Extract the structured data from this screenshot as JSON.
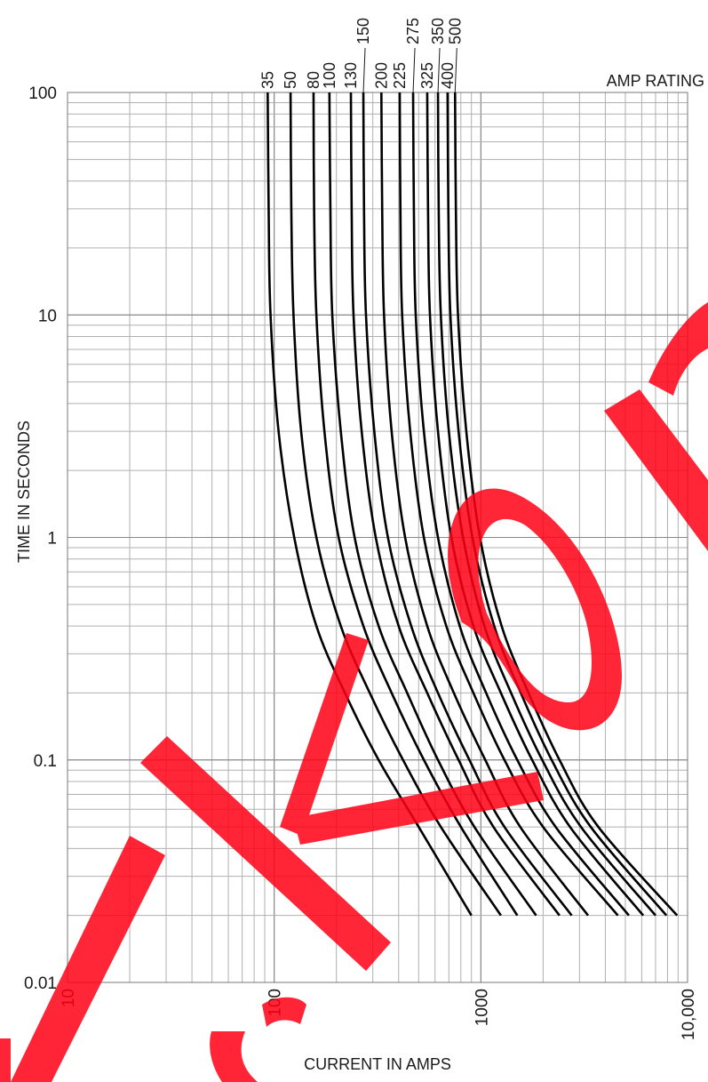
{
  "chart_data": {
    "type": "line",
    "title": "",
    "xlabel": "CURRENT IN AMPS",
    "ylabel": "TIME IN SECONDS",
    "legend_title": "AMP RATING",
    "x_scale": "log",
    "y_scale": "log",
    "xlim": [
      10,
      10000
    ],
    "ylim": [
      0.01,
      100
    ],
    "grid": true,
    "x_ticks": [
      "10",
      "100",
      "1000",
      "10,000"
    ],
    "y_ticks": [
      "0.01",
      "0.1",
      "1",
      "10",
      "100"
    ],
    "series": [
      {
        "name": "35",
        "points": [
          [
            93,
            100
          ],
          [
            94,
            30
          ],
          [
            96,
            10
          ],
          [
            105,
            3
          ],
          [
            125,
            1
          ],
          [
            160,
            0.4
          ],
          [
            220,
            0.2
          ],
          [
            320,
            0.1
          ],
          [
            500,
            0.05
          ],
          [
            900,
            0.02
          ]
        ]
      },
      {
        "name": "50",
        "points": [
          [
            120,
            100
          ],
          [
            121,
            30
          ],
          [
            124,
            10
          ],
          [
            135,
            3
          ],
          [
            160,
            1
          ],
          [
            210,
            0.4
          ],
          [
            290,
            0.2
          ],
          [
            420,
            0.1
          ],
          [
            640,
            0.05
          ],
          [
            1250,
            0.02
          ]
        ]
      },
      {
        "name": "80",
        "points": [
          [
            155,
            100
          ],
          [
            156,
            30
          ],
          [
            160,
            10
          ],
          [
            175,
            3
          ],
          [
            205,
            1
          ],
          [
            270,
            0.4
          ],
          [
            370,
            0.2
          ],
          [
            530,
            0.1
          ],
          [
            800,
            0.05
          ],
          [
            1500,
            0.02
          ]
        ]
      },
      {
        "name": "100",
        "points": [
          [
            185,
            100
          ],
          [
            187,
            30
          ],
          [
            191,
            10
          ],
          [
            210,
            3
          ],
          [
            245,
            1
          ],
          [
            320,
            0.4
          ],
          [
            440,
            0.2
          ],
          [
            620,
            0.1
          ],
          [
            930,
            0.05
          ],
          [
            1850,
            0.02
          ]
        ]
      },
      {
        "name": "130",
        "points": [
          [
            235,
            100
          ],
          [
            237,
            30
          ],
          [
            242,
            10
          ],
          [
            265,
            3
          ],
          [
            310,
            1
          ],
          [
            400,
            0.4
          ],
          [
            550,
            0.2
          ],
          [
            780,
            0.1
          ],
          [
            1150,
            0.05
          ],
          [
            2400,
            0.02
          ]
        ]
      },
      {
        "name": "150",
        "points": [
          [
            270,
            100
          ],
          [
            272,
            30
          ],
          [
            278,
            10
          ],
          [
            305,
            3
          ],
          [
            355,
            1
          ],
          [
            460,
            0.4
          ],
          [
            620,
            0.2
          ],
          [
            880,
            0.1
          ],
          [
            1300,
            0.05
          ],
          [
            2750,
            0.02
          ]
        ]
      },
      {
        "name": "200",
        "points": [
          [
            330,
            100
          ],
          [
            333,
            30
          ],
          [
            340,
            10
          ],
          [
            370,
            3
          ],
          [
            430,
            1
          ],
          [
            550,
            0.4
          ],
          [
            740,
            0.2
          ],
          [
            1050,
            0.1
          ],
          [
            1550,
            0.05
          ],
          [
            3300,
            0.02
          ]
        ]
      },
      {
        "name": "225",
        "points": [
          [
            405,
            100
          ],
          [
            408,
            30
          ],
          [
            416,
            10
          ],
          [
            455,
            3
          ],
          [
            530,
            1
          ],
          [
            680,
            0.4
          ],
          [
            920,
            0.2
          ],
          [
            1300,
            0.1
          ],
          [
            2000,
            0.05
          ],
          [
            4600,
            0.02
          ]
        ]
      },
      {
        "name": "275",
        "points": [
          [
            470,
            100
          ],
          [
            474,
            30
          ],
          [
            484,
            10
          ],
          [
            530,
            3
          ],
          [
            620,
            1
          ],
          [
            790,
            0.4
          ],
          [
            1060,
            0.2
          ],
          [
            1500,
            0.1
          ],
          [
            2300,
            0.05
          ],
          [
            5200,
            0.02
          ]
        ]
      },
      {
        "name": "325",
        "points": [
          [
            550,
            100
          ],
          [
            555,
            30
          ],
          [
            567,
            10
          ],
          [
            620,
            3
          ],
          [
            720,
            1
          ],
          [
            920,
            0.4
          ],
          [
            1250,
            0.2
          ],
          [
            1770,
            0.1
          ],
          [
            2700,
            0.05
          ],
          [
            6100,
            0.02
          ]
        ]
      },
      {
        "name": "350",
        "points": [
          [
            620,
            100
          ],
          [
            625,
            30
          ],
          [
            640,
            10
          ],
          [
            700,
            3
          ],
          [
            820,
            1
          ],
          [
            1040,
            0.4
          ],
          [
            1400,
            0.2
          ],
          [
            1980,
            0.1
          ],
          [
            3050,
            0.05
          ],
          [
            7000,
            0.02
          ]
        ]
      },
      {
        "name": "400",
        "points": [
          [
            690,
            100
          ],
          [
            696,
            30
          ],
          [
            712,
            10
          ],
          [
            780,
            3
          ],
          [
            910,
            1
          ],
          [
            1160,
            0.4
          ],
          [
            1560,
            0.2
          ],
          [
            2200,
            0.1
          ],
          [
            3400,
            0.05
          ],
          [
            7900,
            0.02
          ]
        ]
      },
      {
        "name": "500",
        "points": [
          [
            750,
            100
          ],
          [
            757,
            30
          ],
          [
            775,
            10
          ],
          [
            850,
            3
          ],
          [
            990,
            1
          ],
          [
            1260,
            0.4
          ],
          [
            1700,
            0.2
          ],
          [
            2400,
            0.1
          ],
          [
            3700,
            0.05
          ],
          [
            8900,
            0.02
          ]
        ]
      }
    ]
  },
  "watermark": {
    "color": "#ff0014"
  }
}
